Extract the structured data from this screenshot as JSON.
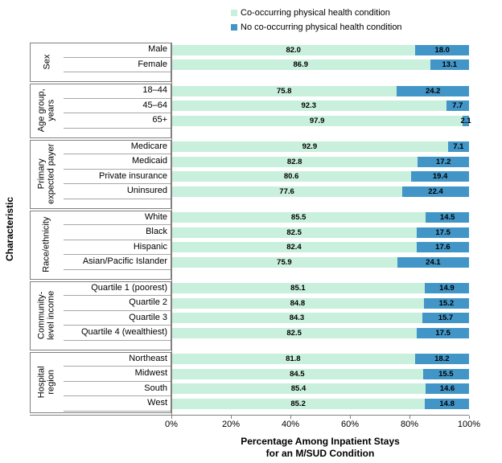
{
  "colors": {
    "co_occurring": "#c9efdd",
    "no_co_occurring": "#4296c7",
    "box_border": "#808080",
    "row_underline": "#a6a6a6"
  },
  "legend": {
    "items": [
      {
        "label": "Co-occurring physical health condition",
        "color_key": "co_occurring"
      },
      {
        "label": "No co-occurring physical health condition",
        "color_key": "no_co_occurring"
      }
    ]
  },
  "y_axis": {
    "label": "Characteristic"
  },
  "x_axis": {
    "ticks": [
      {
        "label": "0%",
        "value": 0
      },
      {
        "label": "20%",
        "value": 20
      },
      {
        "label": "40%",
        "value": 40
      },
      {
        "label": "60%",
        "value": 60
      },
      {
        "label": "80%",
        "value": 80
      },
      {
        "label": "100%",
        "value": 100
      }
    ],
    "title_lines": [
      "Percentage Among Inpatient Stays",
      "for an M/SUD Condition"
    ]
  },
  "chart_data": {
    "type": "bar",
    "orientation": "horizontal",
    "stacked": true,
    "xlim": [
      0,
      100
    ],
    "grid": false,
    "legend_position": "top",
    "series_names": [
      "Co-occurring physical health condition",
      "No co-occurring physical health condition"
    ],
    "groups": [
      {
        "name": "Sex",
        "rows": [
          {
            "label": "Male",
            "values": [
              82.0,
              18.0
            ]
          },
          {
            "label": "Female",
            "values": [
              86.9,
              13.1
            ]
          }
        ]
      },
      {
        "name": "Age group,\nyears",
        "rows": [
          {
            "label": "18–44",
            "values": [
              75.8,
              24.2
            ]
          },
          {
            "label": "45–64",
            "values": [
              92.3,
              7.7
            ]
          },
          {
            "label": "65+",
            "values": [
              97.9,
              2.1
            ]
          }
        ]
      },
      {
        "name": "Primary\nexpected payer",
        "rows": [
          {
            "label": "Medicare",
            "values": [
              92.9,
              7.1
            ]
          },
          {
            "label": "Medicaid",
            "values": [
              82.8,
              17.2
            ]
          },
          {
            "label": "Private insurance",
            "values": [
              80.6,
              19.4
            ]
          },
          {
            "label": "Uninsured",
            "values": [
              77.6,
              22.4
            ]
          }
        ]
      },
      {
        "name": "Race/ethnicity",
        "rows": [
          {
            "label": "White",
            "values": [
              85.5,
              14.5
            ]
          },
          {
            "label": "Black",
            "values": [
              82.5,
              17.5
            ]
          },
          {
            "label": "Hispanic",
            "values": [
              82.4,
              17.6
            ]
          },
          {
            "label": "Asian/Pacific Islander",
            "values": [
              75.9,
              24.1
            ]
          }
        ]
      },
      {
        "name": "Community-\nlevel income",
        "rows": [
          {
            "label": "Quartile 1 (poorest)",
            "values": [
              85.1,
              14.9
            ]
          },
          {
            "label": "Quartile 2",
            "values": [
              84.8,
              15.2
            ]
          },
          {
            "label": "Quartile 3",
            "values": [
              84.3,
              15.7
            ]
          },
          {
            "label": "Quartile 4 (wealthiest)",
            "values": [
              82.5,
              17.5
            ]
          }
        ]
      },
      {
        "name": "Hospital\nregion",
        "rows": [
          {
            "label": "Northeast",
            "values": [
              81.8,
              18.2
            ]
          },
          {
            "label": "Midwest",
            "values": [
              84.5,
              15.5
            ]
          },
          {
            "label": "South",
            "values": [
              85.4,
              14.6
            ]
          },
          {
            "label": "West",
            "values": [
              85.2,
              14.8
            ]
          }
        ]
      }
    ]
  }
}
